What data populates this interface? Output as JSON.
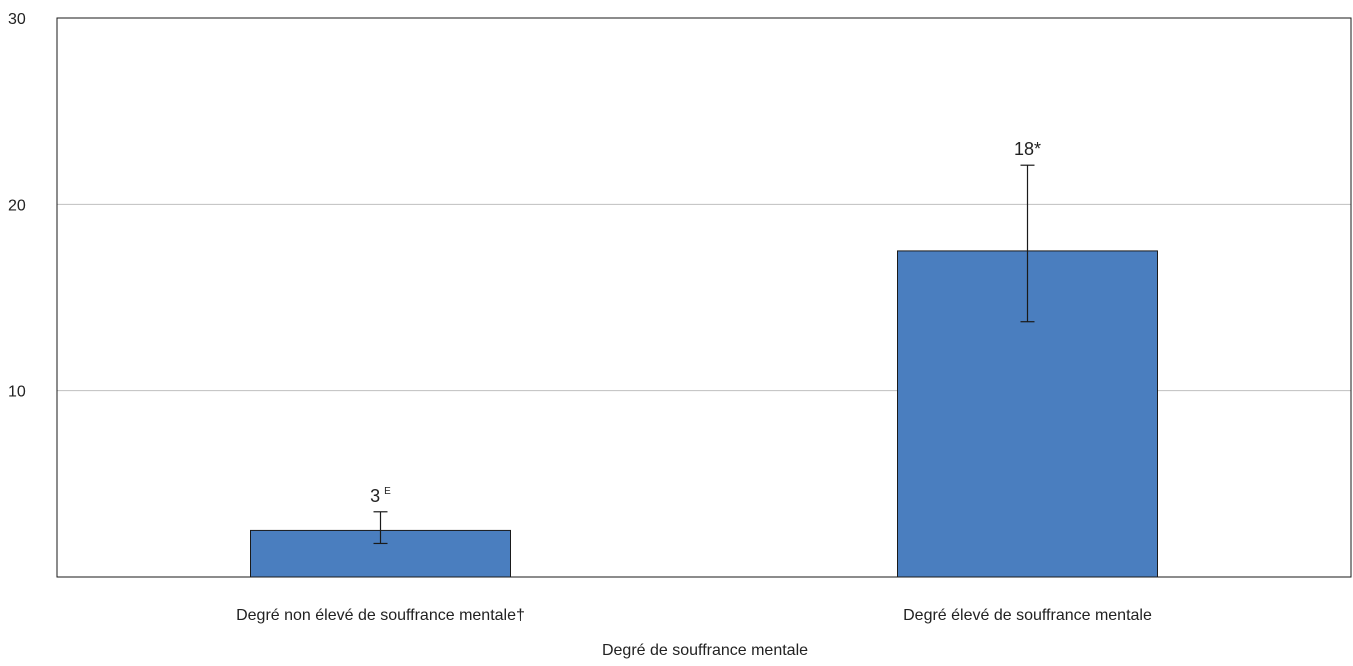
{
  "chart_data": {
    "type": "bar",
    "title": "",
    "xlabel": "Degré de souffrance mentale",
    "ylabel": "",
    "ylim": [
      0,
      30
    ],
    "yticks": [
      10,
      20,
      30
    ],
    "grid": true,
    "categories": [
      "Degré non élevé de souffrance mentale†",
      "Degré élevé de souffrance mentale"
    ],
    "values": [
      2.5,
      17.5
    ],
    "error_bars": [
      {
        "low": 1.8,
        "high": 3.5
      },
      {
        "low": 13.7,
        "high": 22.1
      }
    ],
    "data_labels": [
      {
        "text": "3",
        "sup": "E"
      },
      {
        "text": "18*",
        "sup": ""
      }
    ],
    "colors": {
      "bar": "#4a7ebf",
      "bar_edge": "#1a1a1a",
      "grid": "#bfbfbf",
      "axis": "#1a1a1a"
    }
  }
}
